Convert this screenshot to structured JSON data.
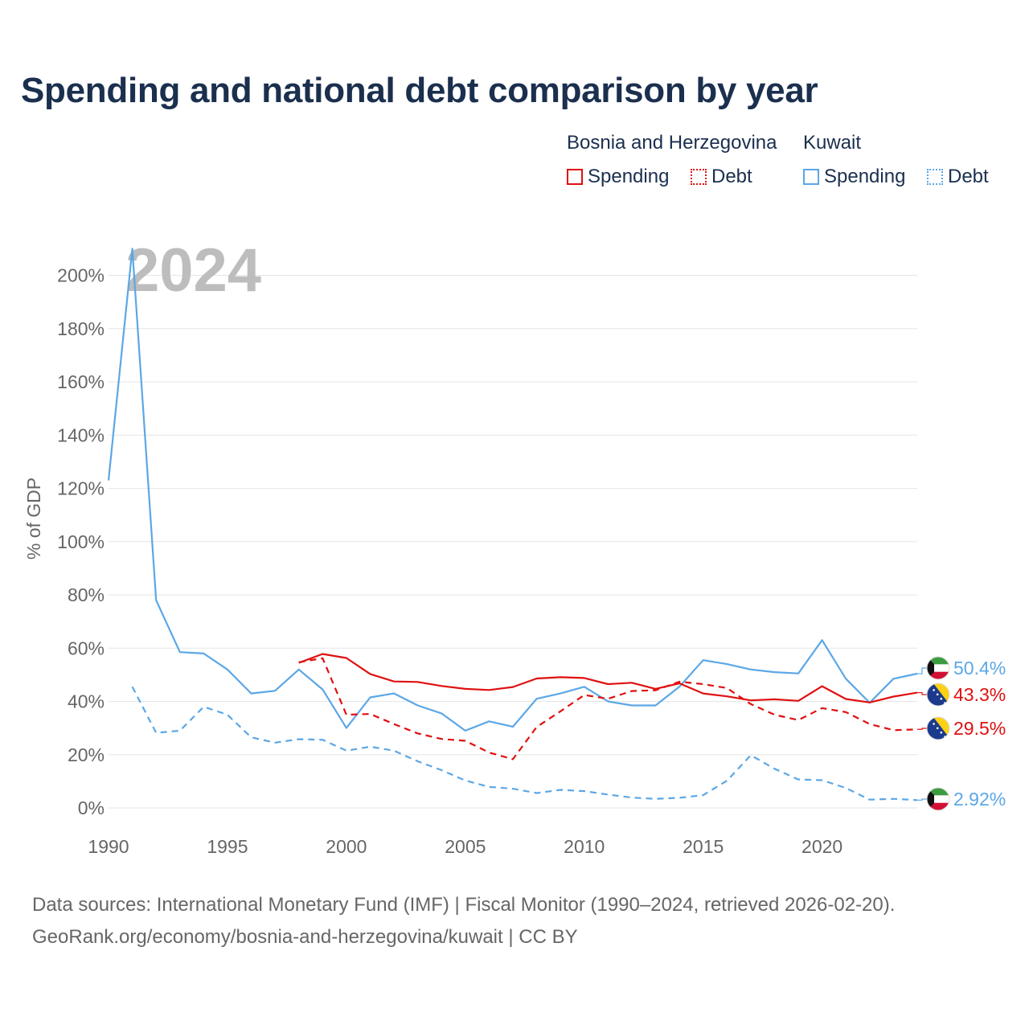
{
  "title": "Spending and national debt comparison by year",
  "legend": {
    "groups": [
      {
        "name": "Bosnia and Herzegovina",
        "items": [
          {
            "label": "Spending",
            "style": "solid",
            "color": "#e01010"
          },
          {
            "label": "Debt",
            "style": "dotted",
            "color": "#e01010"
          }
        ]
      },
      {
        "name": "Kuwait",
        "items": [
          {
            "label": "Spending",
            "style": "solid",
            "color": "#5ba7e6"
          },
          {
            "label": "Debt",
            "style": "dotted",
            "color": "#5ba7e6"
          }
        ]
      }
    ]
  },
  "footer": {
    "line1": "Data sources: International Monetary Fund (IMF) | Fiscal Monitor (1990–2024, retrieved 2026-02-20).",
    "line2": "GeoRank.org/economy/bosnia-and-herzegovina/kuwait | CC BY"
  },
  "colors": {
    "bih": "#e01010",
    "kuwait": "#5ba7e6",
    "title": "#1b2f4e",
    "grid": "#e6e6e6",
    "axis_text": "#666666"
  },
  "chart_data": {
    "type": "line",
    "title": "Spending and national debt comparison by year",
    "year_label": "2024",
    "ylabel": "% of GDP",
    "xlabel": "",
    "xlim": [
      1990,
      2024
    ],
    "ylim": [
      0,
      210
    ],
    "x_ticks": [
      1990,
      1995,
      2000,
      2005,
      2010,
      2015,
      2020
    ],
    "x_tick_labels": [
      "1990",
      "1995",
      "2000",
      "2005",
      "2010",
      "2015",
      "2020"
    ],
    "y_ticks": [
      0,
      20,
      40,
      60,
      80,
      100,
      120,
      140,
      160,
      180,
      200
    ],
    "y_tick_labels": [
      "0%",
      "20%",
      "40%",
      "60%",
      "80%",
      "100%",
      "120%",
      "140%",
      "160%",
      "180%",
      "200%"
    ],
    "grid": true,
    "series": [
      {
        "id": "kw-spending",
        "name": "Kuwait Spending",
        "country": "Kuwait",
        "color": "#5ba7e6",
        "dash": "solid",
        "x": [
          1990,
          1991,
          1992,
          1993,
          1994,
          1995,
          1996,
          1997,
          1998,
          1999,
          2000,
          2001,
          2002,
          2003,
          2004,
          2005,
          2006,
          2007,
          2008,
          2009,
          2010,
          2011,
          2012,
          2013,
          2014,
          2015,
          2016,
          2017,
          2018,
          2019,
          2020,
          2021,
          2022,
          2023,
          2024
        ],
        "values": [
          123,
          210,
          78,
          58.5,
          58,
          52,
          43,
          44,
          52,
          44.5,
          30,
          41.5,
          43,
          38.5,
          35.5,
          29,
          32.5,
          30.5,
          41,
          43,
          45.5,
          40,
          38.5,
          38.5,
          45.5,
          55.5,
          54,
          52,
          51,
          50.5,
          63,
          48.5,
          39.5,
          48.5,
          50.4
        ],
        "end_label": "50.4%"
      },
      {
        "id": "bih-spending",
        "name": "Bosnia and Herzegovina Spending",
        "country": "Bosnia and Herzegovina",
        "color": "#e01010",
        "dash": "solid",
        "x": [
          1998,
          1999,
          2000,
          2001,
          2002,
          2003,
          2004,
          2005,
          2006,
          2007,
          2008,
          2009,
          2010,
          2011,
          2012,
          2013,
          2014,
          2015,
          2016,
          2017,
          2018,
          2019,
          2020,
          2021,
          2022,
          2023,
          2024
        ],
        "values": [
          54.5,
          57.8,
          56.3,
          50.3,
          47.5,
          47.3,
          45.8,
          44.7,
          44.3,
          45.4,
          48.6,
          49.1,
          48.8,
          46.5,
          47,
          44.7,
          46.8,
          43,
          41.9,
          40.4,
          40.8,
          40.2,
          45.7,
          40.9,
          39.6,
          41.8,
          43.3
        ],
        "end_label": "43.3%"
      },
      {
        "id": "bih-debt",
        "name": "Bosnia and Herzegovina Debt",
        "country": "Bosnia and Herzegovina",
        "color": "#e01010",
        "dash": "dashed",
        "x": [
          1998,
          1999,
          2000,
          2001,
          2002,
          2003,
          2004,
          2005,
          2006,
          2007,
          2008,
          2009,
          2010,
          2011,
          2012,
          2013,
          2014,
          2015,
          2016,
          2017,
          2018,
          2019,
          2020,
          2021,
          2022,
          2023,
          2024
        ],
        "values": [
          54.7,
          56.2,
          35,
          35.3,
          31.5,
          28,
          25.9,
          25.2,
          20.8,
          18.3,
          30.4,
          36.3,
          42.4,
          41,
          43.9,
          44.2,
          47.4,
          46.5,
          45,
          39,
          35,
          33,
          37.5,
          36,
          31.5,
          29.2,
          29.5
        ],
        "end_label": "29.5%"
      },
      {
        "id": "kw-debt",
        "name": "Kuwait Debt",
        "country": "Kuwait",
        "color": "#5ba7e6",
        "dash": "dashed",
        "x": [
          1991,
          1992,
          1993,
          1994,
          1995,
          1996,
          1997,
          1998,
          1999,
          2000,
          2001,
          2002,
          2003,
          2004,
          2005,
          2006,
          2007,
          2008,
          2009,
          2010,
          2011,
          2012,
          2013,
          2014,
          2015,
          2016,
          2017,
          2018,
          2019,
          2020,
          2021,
          2022,
          2023,
          2024
        ],
        "values": [
          45.5,
          28.2,
          29,
          38,
          35,
          26.5,
          24.5,
          25.8,
          25.6,
          21.5,
          23,
          21.5,
          17.5,
          14.2,
          10.3,
          7.9,
          7.2,
          5.6,
          6.8,
          6.3,
          5,
          3.9,
          3.4,
          3.8,
          4.8,
          10.2,
          19.8,
          14.7,
          10.7,
          10.4,
          7.5,
          3.1,
          3.4,
          2.92
        ],
        "end_label": "2.92%"
      }
    ]
  }
}
